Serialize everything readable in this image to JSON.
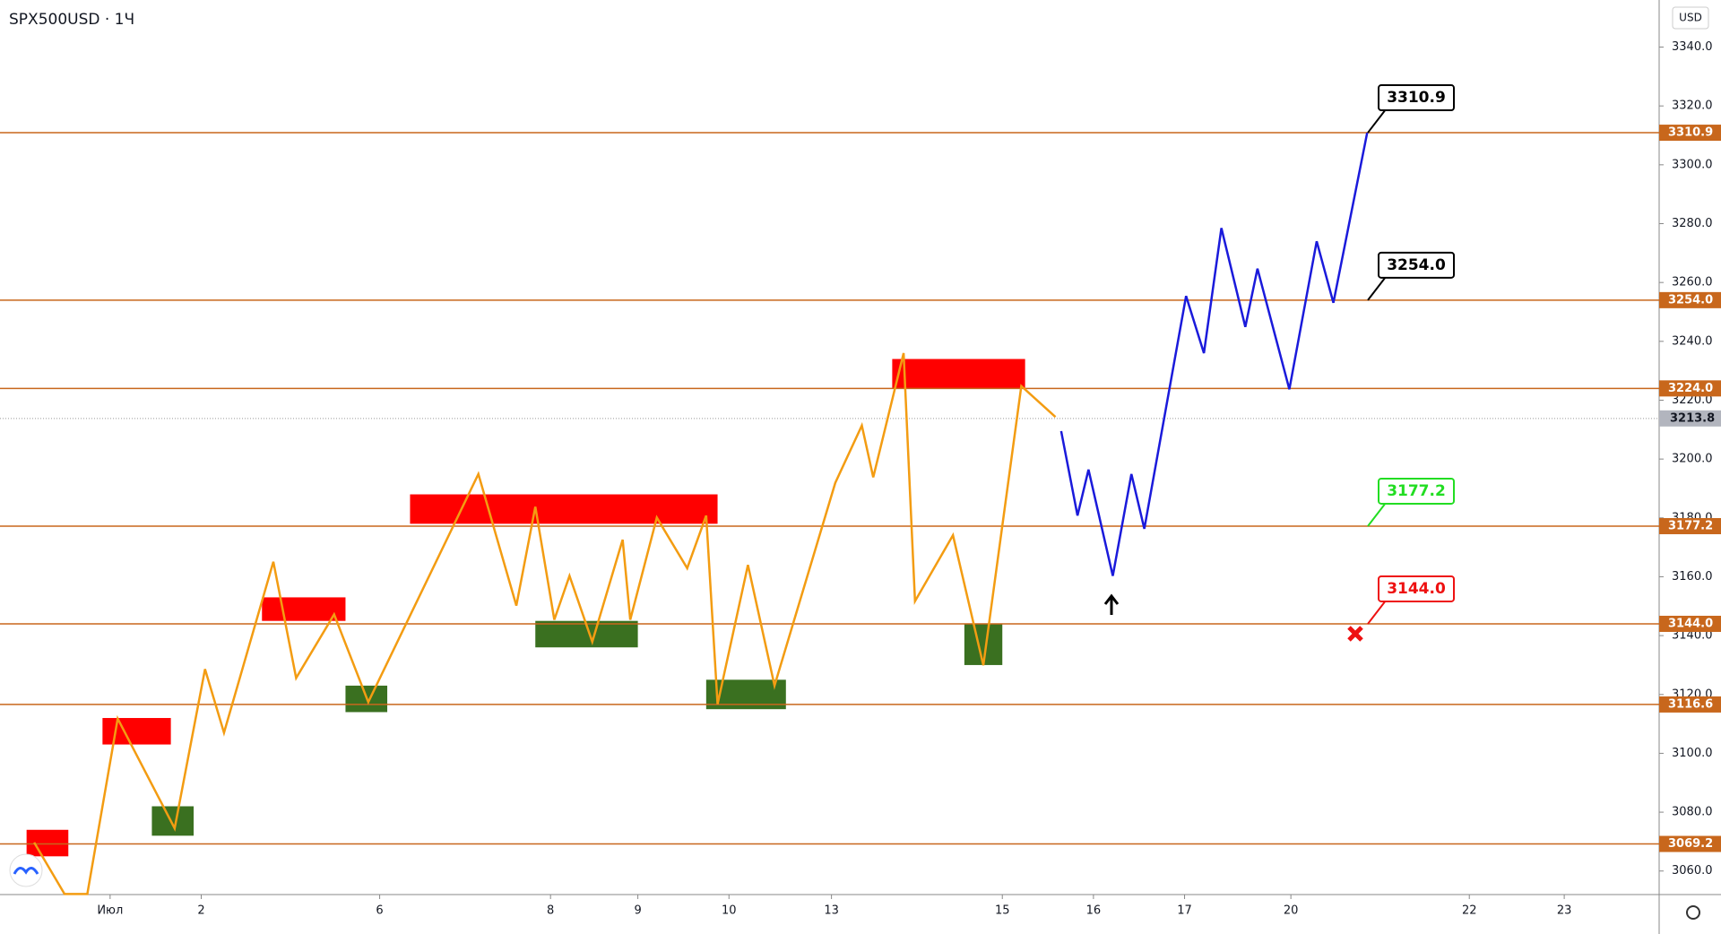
{
  "chart_data": {
    "type": "line",
    "title": "SPX500USD · 1Ч",
    "currency": "USD",
    "xlim": [
      0,
      437
    ],
    "ylim": [
      3052,
      3356
    ],
    "xticks": [
      {
        "value": 29,
        "label": "Июл"
      },
      {
        "value": 53,
        "label": "2"
      },
      {
        "value": 100,
        "label": "6"
      },
      {
        "value": 145,
        "label": "8"
      },
      {
        "value": 168,
        "label": "9"
      },
      {
        "value": 192,
        "label": "10"
      },
      {
        "value": 219,
        "label": "13"
      },
      {
        "value": 264,
        "label": "15"
      },
      {
        "value": 288,
        "label": "16"
      },
      {
        "value": 312,
        "label": "17"
      },
      {
        "value": 340,
        "label": "20"
      },
      {
        "value": 387,
        "label": "22"
      },
      {
        "value": 412,
        "label": "23"
      }
    ],
    "yticks": [
      {
        "value": 3060,
        "label": "3060.0"
      },
      {
        "value": 3080,
        "label": "3080.0"
      },
      {
        "value": 3100,
        "label": "3100.0"
      },
      {
        "value": 3120,
        "label": "3120.0"
      },
      {
        "value": 3140,
        "label": "3140.0"
      },
      {
        "value": 3160,
        "label": "3160.0"
      },
      {
        "value": 3180,
        "label": "3180.0"
      },
      {
        "value": 3200,
        "label": "3200.0"
      },
      {
        "value": 3220,
        "label": "3220.0"
      },
      {
        "value": 3240,
        "label": "3240.0"
      },
      {
        "value": 3260,
        "label": "3260.0"
      },
      {
        "value": 3280,
        "label": "3280.0"
      },
      {
        "value": 3300,
        "label": "3300.0"
      },
      {
        "value": 3320,
        "label": "3320.0"
      },
      {
        "value": 3340,
        "label": "3340.0"
      }
    ],
    "levels": [
      {
        "value": 3310.9,
        "label": "3310.9",
        "callout_color": "#000000"
      },
      {
        "value": 3254.0,
        "label": "3254.0",
        "callout_color": "#000000"
      },
      {
        "value": 3224.0,
        "label": "3224.0"
      },
      {
        "value": 3177.2,
        "label": "3177.2",
        "callout_color": "#22dd22"
      },
      {
        "value": 3144.0,
        "label": "3144.0",
        "callout_color": "#ee1111"
      },
      {
        "value": 3116.6,
        "label": "3116.6"
      },
      {
        "value": 3069.2,
        "label": "3069.2"
      }
    ],
    "level_color": "#c8671c",
    "current_price": {
      "value": 3213.8,
      "label": "3213.8"
    },
    "zones": [
      {
        "color": "#ff0000",
        "x": [
          7,
          18
        ],
        "y": [
          3065,
          3074
        ]
      },
      {
        "color": "#ff0000",
        "x": [
          27,
          45
        ],
        "y": [
          3103,
          3112
        ]
      },
      {
        "color": "#ff0000",
        "x": [
          69,
          91
        ],
        "y": [
          3145,
          3153
        ]
      },
      {
        "color": "#ff0000",
        "x": [
          108,
          189
        ],
        "y": [
          3178,
          3188
        ]
      },
      {
        "color": "#ff0000",
        "x": [
          235,
          270
        ],
        "y": [
          3224,
          3234
        ]
      },
      {
        "color": "#3a7020",
        "x": [
          40,
          51
        ],
        "y": [
          3072,
          3082
        ]
      },
      {
        "color": "#3a7020",
        "x": [
          91,
          102
        ],
        "y": [
          3114,
          3123
        ]
      },
      {
        "color": "#3a7020",
        "x": [
          141,
          168
        ],
        "y": [
          3136,
          3145
        ]
      },
      {
        "color": "#3a7020",
        "x": [
          186,
          207
        ],
        "y": [
          3115,
          3125
        ]
      },
      {
        "color": "#3a7020",
        "x": [
          254,
          264
        ],
        "y": [
          3130,
          3144
        ]
      }
    ],
    "series": [
      {
        "color": "#f39c12",
        "x": [
          9,
          17,
          23,
          31,
          46,
          54,
          59,
          72,
          78,
          88,
          97,
          126,
          136,
          141,
          146,
          150,
          156,
          164,
          166,
          173,
          181,
          186,
          189,
          197,
          204,
          220,
          227,
          230,
          238,
          241,
          251,
          259,
          269,
          278
        ],
        "values": [
          3069.7,
          3052.2,
          3052.2,
          3111.8,
          3074.5,
          3128.6,
          3107.0,
          3165.1,
          3125.6,
          3147.2,
          3117.4,
          3194.9,
          3150.2,
          3183.8,
          3145.4,
          3160.3,
          3137.9,
          3172.6,
          3145.4,
          3180.1,
          3162.9,
          3180.8,
          3116.7,
          3164.0,
          3123.0,
          3191.9,
          3211.4,
          3193.8,
          3236.0,
          3151.7,
          3174.1,
          3129.9,
          3224.8,
          3214.3
        ]
      },
      {
        "color": "#1a1adb",
        "x": [
          279.5,
          283.8,
          286.7,
          293.1,
          298.0,
          301.4,
          312.4,
          317.1,
          321.7,
          328.0,
          331.2,
          339.6,
          346.8,
          351.2,
          360.1
        ],
        "values": [
          3209.5,
          3180.8,
          3196.4,
          3160.3,
          3194.9,
          3176.3,
          3255.4,
          3236.0,
          3278.5,
          3244.9,
          3264.7,
          3223.7,
          3274.0,
          3253.1,
          3310.9
        ]
      }
    ]
  }
}
